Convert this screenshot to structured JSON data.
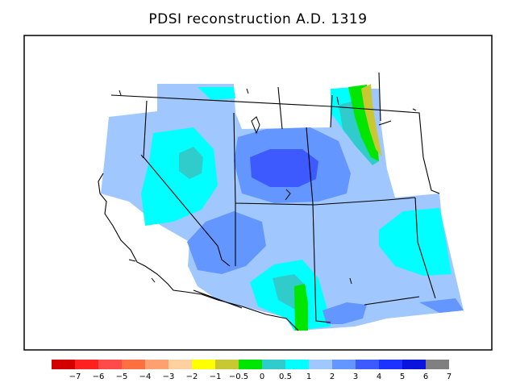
{
  "title": "PDSI reconstruction A.D. 1319",
  "legend": {
    "labels": [
      "−7",
      "−6",
      "−5",
      "−4",
      "−3",
      "−2",
      "−1",
      "−0.5",
      "0",
      "0.5",
      "1",
      "2",
      "3",
      "4",
      "5",
      "6",
      "7"
    ],
    "colors": [
      "#d40000",
      "#ff2020",
      "#ff4a4a",
      "#ff7040",
      "#ffa070",
      "#ffd0a0",
      "#ffff00",
      "#c8c832",
      "#00e600",
      "#30cccc",
      "#00ffff",
      "#a0c8ff",
      "#6496ff",
      "#3c5aff",
      "#1e32ff",
      "#0a14dc",
      "#808080"
    ]
  },
  "map": {
    "fill_colors": {
      "base": "#a0c8ff",
      "cyan": "#00ffff",
      "teal": "#30cccc",
      "mid_blue": "#6496ff",
      "dark_blue": "#3c5aff",
      "green": "#00e600",
      "olive": "#c8c832"
    }
  }
}
